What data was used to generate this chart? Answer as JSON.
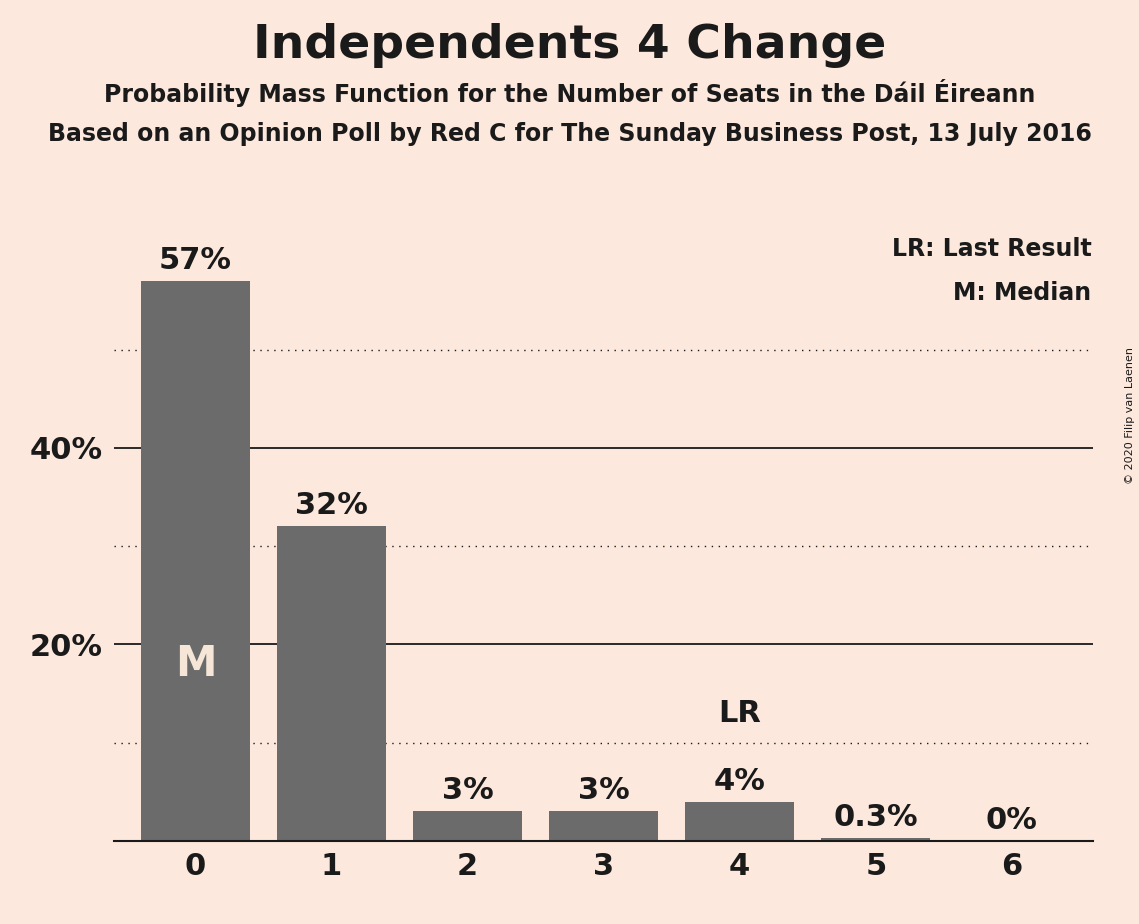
{
  "title": "Independents 4 Change",
  "subtitle1": "Probability Mass Function for the Number of Seats in the Dáil Éireann",
  "subtitle2": "Based on an Opinion Poll by Red C for The Sunday Business Post, 13 July 2016",
  "copyright": "© 2020 Filip van Laenen",
  "categories": [
    0,
    1,
    2,
    3,
    4,
    5,
    6
  ],
  "values": [
    0.57,
    0.32,
    0.03,
    0.03,
    0.04,
    0.003,
    0.0
  ],
  "bar_color": "#6b6b6b",
  "background_color": "#fce8dc",
  "label_texts": [
    "57%",
    "32%",
    "3%",
    "3%",
    "4%",
    "0.3%",
    "0%"
  ],
  "median_bar": 0,
  "median_label": "M",
  "lr_bar": 4,
  "lr_label": "LR",
  "solid_gridlines": [
    0.2,
    0.4
  ],
  "dotted_gridlines": [
    0.1,
    0.3,
    0.5
  ],
  "ytick_labels": [
    "20%",
    "40%"
  ],
  "ytick_values": [
    0.2,
    0.4
  ],
  "ylim": [
    0,
    0.63
  ],
  "title_fontsize": 34,
  "subtitle_fontsize": 17,
  "label_fontsize": 22,
  "axis_fontsize": 22,
  "median_fontsize": 30,
  "lr_fontsize": 22,
  "legend_fontsize": 17,
  "copyright_fontsize": 8
}
